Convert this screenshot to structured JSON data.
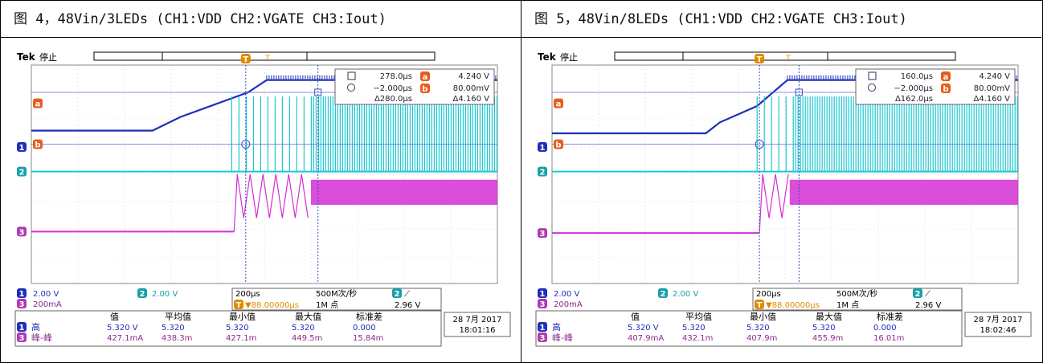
{
  "figures": [
    {
      "caption": "图 4，48Vin/3LEDs (CH1:VDD  CH2:VGATE  CH3:Iout)",
      "brand": "Tek",
      "state": "停止",
      "cursor_box": {
        "r1_time": "278.0μs",
        "r1_val": "4.240 V",
        "r2_time": "−2.000μs",
        "r2_val": "80.00mV",
        "d_time": "Δ280.0μs",
        "d_val": "Δ4.160 V"
      },
      "ch_settings": {
        "ch1": "2.00 V",
        "ch2": "2.00 V",
        "ch3": "200mA"
      },
      "timebase": {
        "scale": "200μs",
        "rate": "500M次/秒",
        "trig_ch": "2",
        "trig_pos": "▼88.00000μs",
        "points": "1M 点",
        "trig_level": "2.96 V"
      },
      "meas": {
        "headers": [
          "值",
          "平均值",
          "最小值",
          "最大值",
          "标准差"
        ],
        "rows": [
          {
            "ch": "1",
            "label": "高",
            "values": [
              "5.320 V",
              "5.320",
              "5.320",
              "5.320",
              "0.000"
            ]
          },
          {
            "ch": "3",
            "label": "峰-峰",
            "values": [
              "427.1mA",
              "438.3m",
              "427.1m",
              "449.5m",
              "15.84m"
            ]
          }
        ]
      },
      "datetime": {
        "date": "28 7月 2017",
        "time": "18:01:16"
      },
      "chart_data": {
        "type": "line",
        "x_unit": "divisions",
        "series": [
          {
            "name": "CH1",
            "color": "#1f2fb8",
            "x": [
              0,
              2.6,
              3.2,
              4.65,
              5.05,
              10
            ],
            "y": [
              5.6,
              5.6,
              6.1,
              7.0,
              7.45,
              7.45
            ]
          },
          {
            "name": "CH2",
            "color": "#1cc8d2",
            "x": [
              0,
              4.3,
              4.3,
              10
            ],
            "y": [
              4.1,
              4.1,
              4.1,
              4.1
            ]
          },
          {
            "name": "CH3",
            "color": "#d42fd4",
            "x": [
              0,
              4.35,
              10
            ],
            "y": [
              1.9,
              1.9,
              1.9
            ]
          }
        ]
      }
    },
    {
      "caption": "图 5，48Vin/8LEDs (CH1:VDD  CH2:VGATE  CH3:Iout)",
      "brand": "Tek",
      "state": "停止",
      "cursor_box": {
        "r1_time": "160.0μs",
        "r1_val": "4.240 V",
        "r2_time": "−2.000μs",
        "r2_val": "80.00mV",
        "d_time": "Δ162.0μs",
        "d_val": "Δ4.160 V"
      },
      "ch_settings": {
        "ch1": "2.00 V",
        "ch2": "2.00 V",
        "ch3": "200mA"
      },
      "timebase": {
        "scale": "200μs",
        "rate": "500M次/秒",
        "trig_ch": "2",
        "trig_pos": "▼88.00000μs",
        "points": "1M 点",
        "trig_level": "2.96 V"
      },
      "meas": {
        "headers": [
          "值",
          "平均值",
          "最小值",
          "最大值",
          "标准差"
        ],
        "rows": [
          {
            "ch": "1",
            "label": "高",
            "values": [
              "5.320 V",
              "5.320",
              "5.320",
              "5.320",
              "0.000"
            ]
          },
          {
            "ch": "3",
            "label": "峰-峰",
            "values": [
              "407.9mA",
              "432.1m",
              "407.9m",
              "455.9m",
              "16.01m"
            ]
          }
        ]
      },
      "datetime": {
        "date": "28 7月 2017",
        "time": "18:02:46"
      },
      "chart_data": {
        "type": "line",
        "x_unit": "divisions",
        "series": [
          {
            "name": "CH1",
            "color": "#1f2fb8",
            "x": [
              0,
              3.3,
              3.6,
              4.4,
              5.05,
              10
            ],
            "y": [
              5.5,
              5.5,
              5.9,
              6.5,
              7.45,
              7.45
            ]
          },
          {
            "name": "CH2",
            "color": "#1cc8d2",
            "x": [
              0,
              4.4,
              4.4,
              10
            ],
            "y": [
              4.1,
              4.1,
              4.1,
              4.1
            ]
          },
          {
            "name": "CH3",
            "color": "#d42fd4",
            "x": [
              0,
              4.45,
              10
            ],
            "y": [
              1.85,
              1.85,
              1.85
            ]
          }
        ]
      }
    }
  ]
}
